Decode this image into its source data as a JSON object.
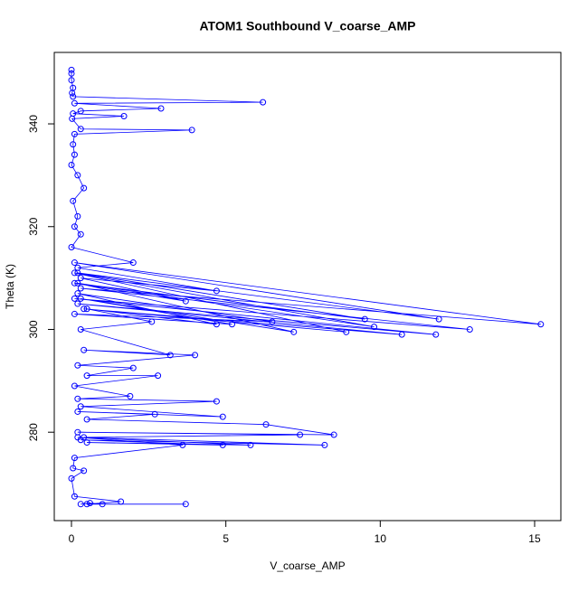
{
  "chart_data": {
    "type": "line",
    "markers": true,
    "title": "ATOM1 Southbound V_coarse_AMP",
    "x_label": "V_coarse_AMP",
    "y_label": "Theta (K)",
    "color": "#0000ff",
    "x": [
      0,
      0,
      0,
      0.05,
      0.02,
      0.05,
      6.2,
      0.1,
      2.9,
      0.3,
      0.05,
      1.7,
      0.02,
      0.3,
      3.9,
      0.1,
      0.05,
      0.1,
      0,
      0.2,
      0.4,
      0.05,
      0.2,
      0.1,
      0.3,
      0,
      2,
      0.2,
      4.7,
      0.3,
      3.7,
      0.1,
      9.5,
      0.2,
      11.9,
      0.1,
      15.2,
      0.3,
      12.9,
      0.1,
      11.8,
      0.2,
      10.7,
      0.4,
      8.9,
      0.1,
      9.8,
      0.2,
      7.2,
      0.3,
      5.2,
      0.1,
      6.5,
      0.2,
      4.7,
      0.5,
      2.6,
      0.3,
      3.2,
      0.4,
      4,
      0.2,
      2,
      0.5,
      2.8,
      0.1,
      1.9,
      0.2,
      4.7,
      0.3,
      4.9,
      0.2,
      2.7,
      0.5,
      6.3,
      8.5,
      0.2,
      7.4,
      0.4,
      8.2,
      0.3,
      4.9,
      0.5,
      5.8,
      0.2,
      3.6,
      0.1,
      0.05,
      0.4,
      0,
      0.1,
      1.6,
      0.5,
      3.7,
      1,
      0.6,
      0.3
    ],
    "values": [
      350.5,
      349.8,
      348.5,
      347,
      346,
      345.3,
      344.2,
      344,
      343,
      342.5,
      342,
      341.5,
      341,
      339,
      338.8,
      338,
      336,
      334,
      332,
      330,
      327.5,
      325,
      322,
      320,
      318.5,
      316,
      313,
      312,
      307.5,
      310,
      305.5,
      309,
      302,
      311,
      302,
      313,
      301,
      308,
      300,
      306,
      299,
      305,
      299,
      304,
      299.5,
      311,
      300.5,
      309,
      299.5,
      306,
      301,
      303,
      301.5,
      307,
      301,
      304,
      301.5,
      300,
      295,
      296,
      295,
      293,
      292.5,
      291,
      291,
      289,
      287,
      286.5,
      286,
      285,
      283,
      284,
      283.5,
      282.5,
      281.5,
      279.5,
      280,
      279.5,
      279,
      277.5,
      278.5,
      277.5,
      278,
      277.5,
      279,
      277.5,
      275,
      273,
      272.5,
      271,
      267.5,
      266.5,
      266,
      266,
      266,
      266.2,
      266
    ],
    "xlim": [
      -0.557,
      15.85
    ],
    "ylim": [
      262.8,
      353.9
    ],
    "xticks": [
      0,
      5,
      10,
      15
    ],
    "yticks": [
      280,
      300,
      320,
      340
    ]
  }
}
